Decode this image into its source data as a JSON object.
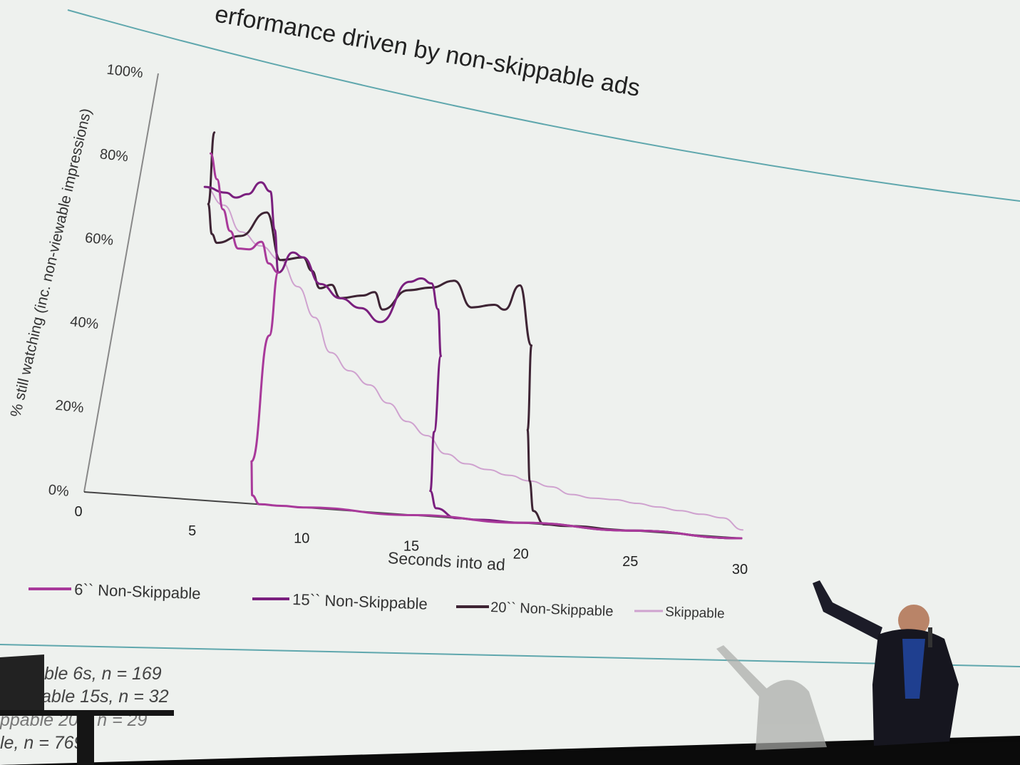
{
  "slide": {
    "title": "erformance driven by non-skippable ads",
    "footnotes": [
      "ble 6s, n = 169",
      "able 15s, n = 32",
      "ppable 20s, n = 29",
      "le, n = 769"
    ]
  },
  "colors": {
    "screen": "#eef1ee",
    "rule_line": "#5fa7ad",
    "six_sec": "#a8399a",
    "fifteen_sec": "#7a1f7e",
    "twenty_sec": "#3e2434",
    "skippable": "#cfa2cf"
  },
  "chart_data": {
    "type": "line",
    "title": "erformance driven by non-skippable ads",
    "xlabel": "Seconds into ad",
    "ylabel": "% still watching (inc. non-viewable impressions)",
    "xlim": [
      0,
      30
    ],
    "ylim": [
      0,
      100
    ],
    "x_ticks": [
      "0",
      "5",
      "10",
      "15",
      "20",
      "25",
      "30"
    ],
    "y_ticks": [
      "0%",
      "20%",
      "40%",
      "60%",
      "80%",
      "100%"
    ],
    "grid": false,
    "legend_position": "bottom",
    "series": [
      {
        "name": "6`` Non-Skippable",
        "color": "#a8399a",
        "width": 3,
        "x": [
          3,
          3.5,
          4,
          4.5,
          5,
          5.5,
          6,
          6.5,
          7,
          7.1,
          7.3,
          7.6,
          8,
          9,
          10,
          15,
          20,
          25,
          30
        ],
        "y": [
          82,
          76,
          69,
          64,
          60,
          60,
          62,
          57,
          55,
          40,
          10,
          2,
          0,
          0,
          0,
          0,
          0,
          0,
          0
        ]
      },
      {
        "name": "15`` Non-Skippable",
        "color": "#7a1f7e",
        "width": 3,
        "x": [
          3,
          4,
          4.5,
          5,
          5.5,
          6,
          6.5,
          7,
          7.5,
          8,
          9,
          10,
          11,
          12,
          13,
          13.5,
          14,
          14.5,
          15,
          15.3,
          15.6,
          16,
          17,
          18,
          20,
          25,
          30
        ],
        "y": [
          74,
          73,
          72,
          73,
          76,
          74,
          65,
          55,
          60,
          59,
          53,
          50,
          48,
          45,
          55,
          56,
          55,
          49,
          38,
          20,
          6,
          2,
          0,
          0,
          0,
          0,
          0
        ]
      },
      {
        "name": "20`` Non-Skippable",
        "color": "#3e2434",
        "width": 3,
        "x": [
          3,
          3.3,
          3.7,
          4,
          5,
          6,
          7,
          8,
          8.5,
          9,
          9.5,
          10,
          11,
          11.5,
          12,
          13,
          14,
          15,
          16,
          17,
          17.5,
          18,
          19,
          19.5,
          20,
          20.4,
          21,
          22,
          25,
          30
        ],
        "y": [
          87,
          70,
          63,
          61,
          63,
          69,
          58,
          59,
          56,
          52,
          53,
          50,
          51,
          52,
          48,
          53,
          54,
          56,
          50,
          51,
          50,
          56,
          42,
          22,
          10,
          3,
          0,
          0,
          0,
          0
        ]
      },
      {
        "name": "Skippable",
        "color": "#cfa2cf",
        "width": 2,
        "x": [
          3,
          4,
          5,
          6,
          7,
          8,
          9,
          10,
          11,
          12,
          13,
          14,
          15,
          16,
          17,
          18,
          19,
          20,
          21,
          22,
          23,
          24,
          25,
          26,
          27,
          28,
          29,
          30
        ],
        "y": [
          74,
          70,
          64,
          61,
          58,
          52,
          45,
          37,
          33,
          30,
          26,
          22,
          19,
          15,
          13,
          12,
          11,
          10,
          9,
          7.5,
          7,
          7,
          6.5,
          6,
          5.5,
          5,
          4.5,
          2
        ]
      }
    ]
  }
}
